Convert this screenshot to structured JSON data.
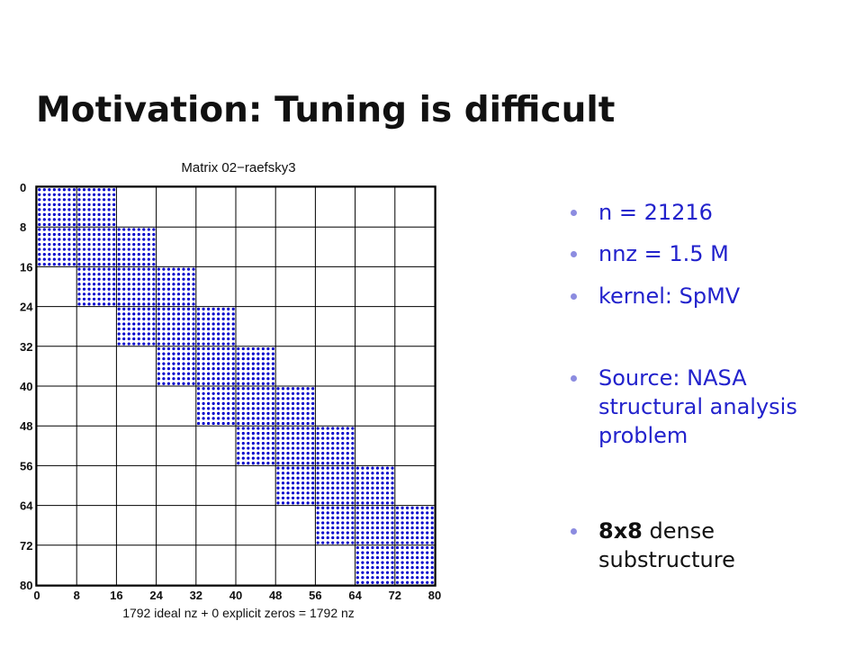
{
  "slide": {
    "title": "Motivation: Tuning is difficult"
  },
  "bullets": {
    "n": "n = 21216",
    "nnz": "nnz = 1.5 M",
    "kernel": "kernel: SpMV",
    "source": "Source: NASA structural analysis problem",
    "substructure_bold": "8x8",
    "substructure_rest": " dense substructure"
  },
  "colors": {
    "nonzero_dot": "#0000cc",
    "bullet_text": "#2222cc",
    "title_text": "#111111"
  },
  "figure": {
    "title": "Matrix 02−raefsky3",
    "caption": "1792 ideal nz + 0 explicit zeros = 1792 nz",
    "axis_ticks": [
      "0",
      "8",
      "16",
      "24",
      "32",
      "40",
      "48",
      "56",
      "64",
      "72",
      "80"
    ]
  },
  "chart_data": {
    "type": "heatmap",
    "title": "Matrix 02−raefsky3",
    "xlabel": "1792 ideal nz + 0 explicit zeros = 1792 nz",
    "ylabel": "",
    "xlim": [
      0,
      80
    ],
    "ylim": [
      80,
      0
    ],
    "block_size": 8,
    "grid": true,
    "nonzero_blocks": [
      [
        0,
        0
      ],
      [
        0,
        1
      ],
      [
        1,
        0
      ],
      [
        1,
        1
      ],
      [
        1,
        2
      ],
      [
        2,
        1
      ],
      [
        2,
        2
      ],
      [
        2,
        3
      ],
      [
        3,
        2
      ],
      [
        3,
        3
      ],
      [
        3,
        4
      ],
      [
        4,
        3
      ],
      [
        4,
        4
      ],
      [
        4,
        5
      ],
      [
        5,
        4
      ],
      [
        5,
        5
      ],
      [
        5,
        6
      ],
      [
        6,
        5
      ],
      [
        6,
        6
      ],
      [
        6,
        7
      ],
      [
        7,
        6
      ],
      [
        7,
        7
      ],
      [
        7,
        8
      ],
      [
        8,
        7
      ],
      [
        8,
        8
      ],
      [
        8,
        9
      ],
      [
        9,
        8
      ],
      [
        9,
        9
      ]
    ],
    "ideal_nz": 1792,
    "explicit_zeros": 0,
    "total_nz": 1792
  }
}
